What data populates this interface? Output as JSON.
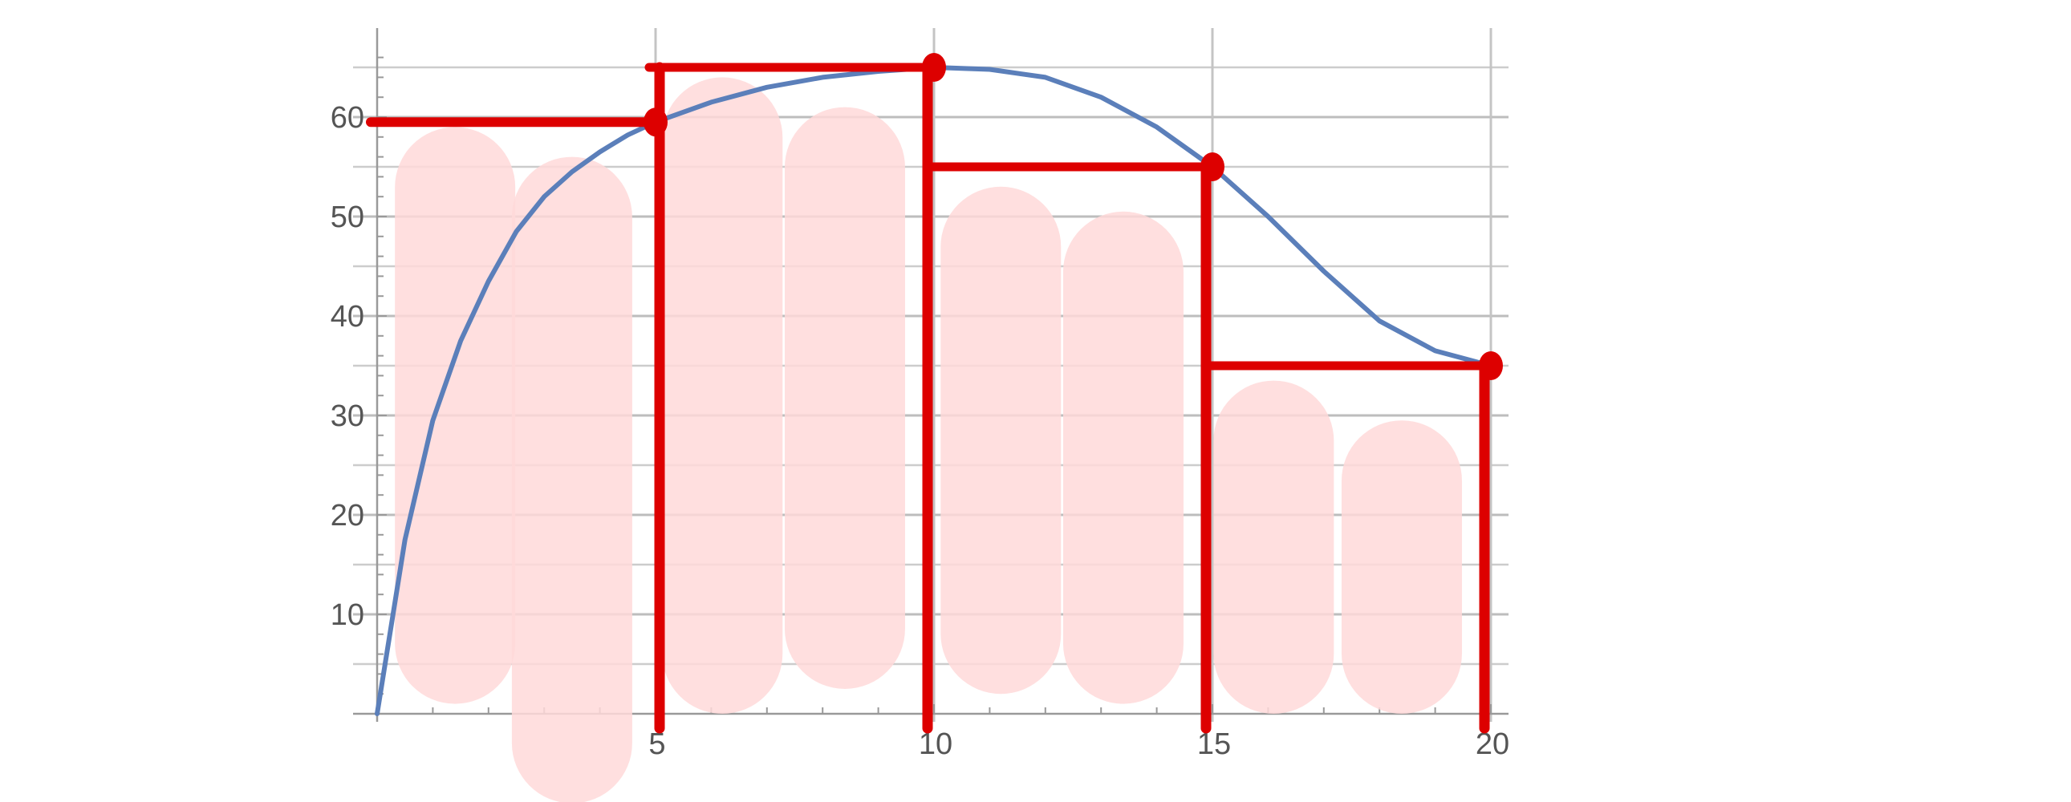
{
  "chart_data": {
    "type": "line",
    "title": "",
    "xlabel": "",
    "ylabel": "",
    "xlim": [
      0,
      20.4
    ],
    "ylim": [
      0,
      69
    ],
    "grid": true,
    "x_ticks": [
      {
        "value": 5,
        "label": "5"
      },
      {
        "value": 10,
        "label": "10"
      },
      {
        "value": 15,
        "label": "15"
      },
      {
        "value": 20,
        "label": "20"
      }
    ],
    "y_ticks": [
      {
        "value": 10,
        "label": "10"
      },
      {
        "value": 20,
        "label": "20"
      },
      {
        "value": 30,
        "label": "30"
      },
      {
        "value": 40,
        "label": "40"
      },
      {
        "value": 50,
        "label": "50"
      },
      {
        "value": 60,
        "label": "60"
      }
    ],
    "series": [
      {
        "color": "#5b7fba",
        "x": [
          0,
          0.5,
          1,
          1.5,
          2,
          2.5,
          3,
          3.5,
          4,
          4.5,
          5,
          6,
          7,
          8,
          9,
          10,
          11,
          12,
          13,
          14,
          15,
          16,
          17,
          18,
          19,
          20
        ],
        "y": [
          0,
          17.5,
          29.5,
          37.5,
          43.5,
          48.5,
          52,
          54.5,
          56.5,
          58.2,
          59.5,
          61.5,
          63,
          64,
          64.6,
          65,
          64.8,
          64,
          62,
          59,
          55,
          50,
          44.5,
          39.5,
          36.5,
          35
        ]
      }
    ],
    "annotation_color": "#dd0000",
    "shading_color": "#ffd9d9",
    "riemann_rectangles": [
      {
        "x_start": 5,
        "x_end": 10,
        "height": 65
      },
      {
        "x_start": 10,
        "x_end": 15,
        "height": 55
      },
      {
        "x_start": 15,
        "x_end": 20,
        "height": 35
      }
    ],
    "horizontal_marks": [
      {
        "x_start": 0,
        "x_end": 5,
        "y": 59.5
      }
    ],
    "marked_points": [
      {
        "x": 5,
        "y": 59.5
      },
      {
        "x": 10,
        "y": 65
      },
      {
        "x": 15,
        "y": 55
      },
      {
        "x": 20,
        "y": 35
      }
    ],
    "shaded_strokes": [
      {
        "x_center": 1.4,
        "y_top": 59,
        "y_bottom": 1
      },
      {
        "x_center": 3.5,
        "y_top": 56,
        "y_bottom": -9
      },
      {
        "x_center": 6.2,
        "y_top": 64,
        "y_bottom": 0
      },
      {
        "x_center": 8.4,
        "y_top": 61,
        "y_bottom": 2.5
      },
      {
        "x_center": 11.2,
        "y_top": 53,
        "y_bottom": 2
      },
      {
        "x_center": 13.4,
        "y_top": 50.5,
        "y_bottom": 1
      },
      {
        "x_center": 16.1,
        "y_top": 33.5,
        "y_bottom": 0
      },
      {
        "x_center": 18.4,
        "y_top": 29.5,
        "y_bottom": 0
      }
    ]
  }
}
